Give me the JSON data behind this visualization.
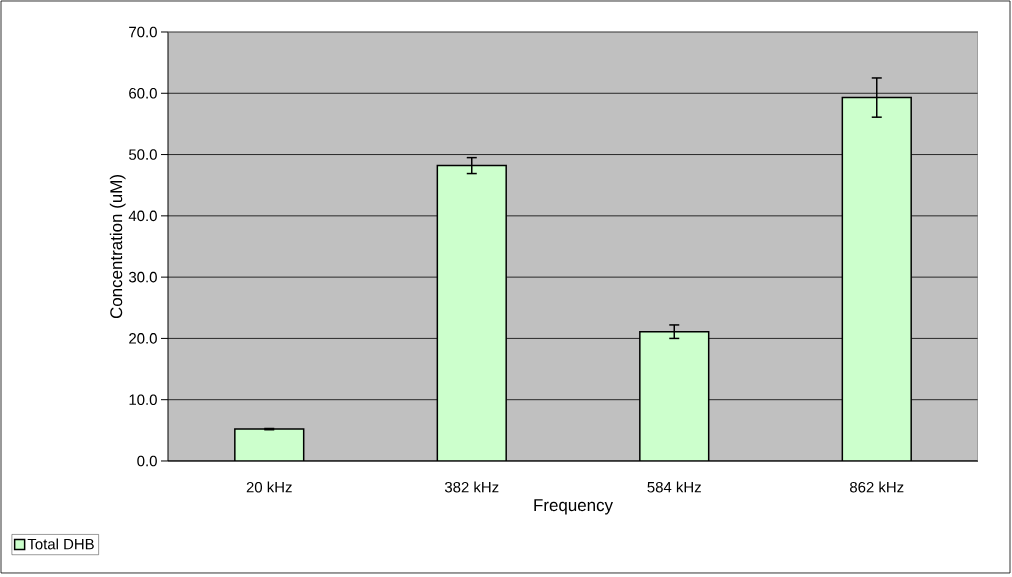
{
  "chart_data": {
    "type": "bar",
    "xlabel": "Frequency",
    "ylabel": "Concentration (uM)",
    "categories": [
      "20 kHz",
      "382 kHz",
      "584 kHz",
      "862 kHz"
    ],
    "series": [
      {
        "name": "Total DHB",
        "color": "#ccffcc",
        "values": [
          5.2,
          48.2,
          21.1,
          59.3
        ],
        "errors": [
          0.1,
          1.3,
          1.1,
          3.2
        ]
      }
    ],
    "ylim": [
      0,
      70
    ],
    "yticks": [
      {
        "value": 0,
        "label": "0.0"
      },
      {
        "value": 10,
        "label": "10.0"
      },
      {
        "value": 20,
        "label": "20.0"
      },
      {
        "value": 30,
        "label": "30.0"
      },
      {
        "value": 40,
        "label": "40.0"
      },
      {
        "value": 50,
        "label": "50.0"
      },
      {
        "value": 60,
        "label": "60.0"
      },
      {
        "value": 70,
        "label": "70.0"
      }
    ],
    "grid": "y",
    "legend": "bottom left"
  }
}
